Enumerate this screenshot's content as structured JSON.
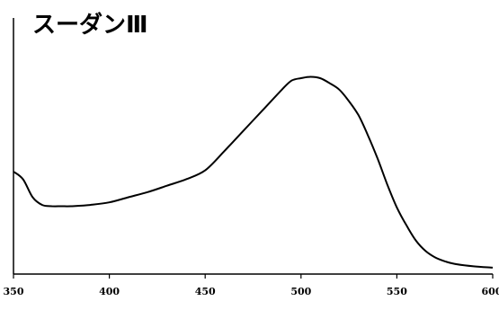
{
  "chart_data": {
    "type": "line",
    "title": "スーダンⅢ",
    "xlabel": "",
    "ylabel": "",
    "xlim": [
      350,
      600
    ],
    "ylim": [
      0,
      1
    ],
    "xticks": [
      "350",
      "400",
      "450",
      "500",
      "550",
      "600"
    ],
    "grid": false,
    "series": [
      {
        "color": "#000000",
        "x": [
          350,
          355,
          360,
          365,
          370,
          375,
          380,
          390,
          400,
          410,
          420,
          430,
          440,
          450,
          460,
          470,
          480,
          490,
          495,
          500,
          505,
          510,
          515,
          520,
          525,
          530,
          535,
          540,
          545,
          550,
          555,
          560,
          565,
          570,
          575,
          580,
          590,
          600
        ],
        "y": [
          0.4,
          0.37,
          0.3,
          0.27,
          0.265,
          0.265,
          0.265,
          0.27,
          0.28,
          0.3,
          0.32,
          0.345,
          0.37,
          0.405,
          0.48,
          0.56,
          0.64,
          0.72,
          0.755,
          0.765,
          0.77,
          0.765,
          0.745,
          0.72,
          0.675,
          0.62,
          0.54,
          0.45,
          0.35,
          0.26,
          0.19,
          0.13,
          0.09,
          0.065,
          0.05,
          0.04,
          0.03,
          0.025
        ]
      }
    ]
  }
}
